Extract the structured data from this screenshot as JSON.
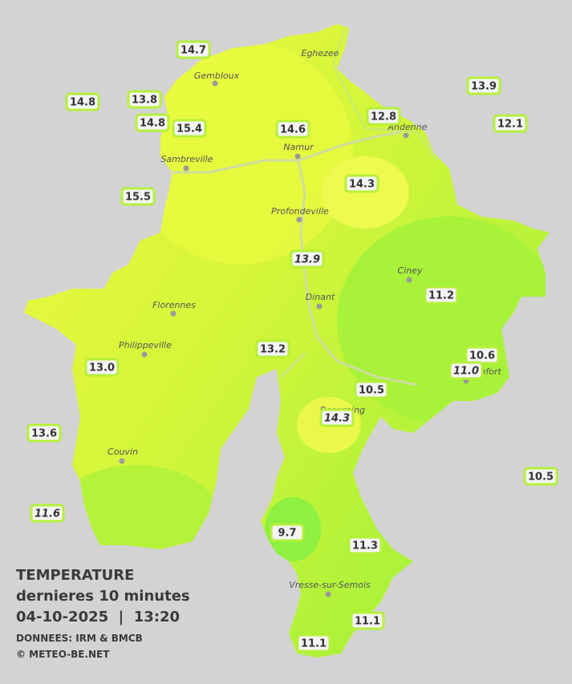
{
  "header": {
    "title": "TEMPERATURE",
    "subtitle": "dernieres 10 minutes",
    "datetime": "04-10-2025  |  13:20",
    "source": "DONNEES: IRM & BMCB",
    "credit": "© METEO-BE.NET"
  },
  "stations": [
    "14.7",
    "14.8",
    "13.8",
    "14.8",
    "15.4",
    "14.6",
    "12.8",
    "13.9",
    "12.1",
    "15.5",
    "14.3",
    "13.9",
    "11.2",
    "13.2",
    "13.0",
    "10.6",
    "11.0",
    "10.5",
    "14.3",
    "13.6",
    "10.5",
    "11.6",
    "9.7",
    "11.3",
    "11.1",
    "11.1"
  ],
  "cities": [
    "Eghezee",
    "Gembloux",
    "Andenne",
    "Namur",
    "Sambreville",
    "Profondeville",
    "Ciney",
    "Dinant",
    "Florennes",
    "Philippeville",
    "Beauraing",
    "Rochefort",
    "Couvin",
    "Vresse-sur-Semois"
  ]
}
